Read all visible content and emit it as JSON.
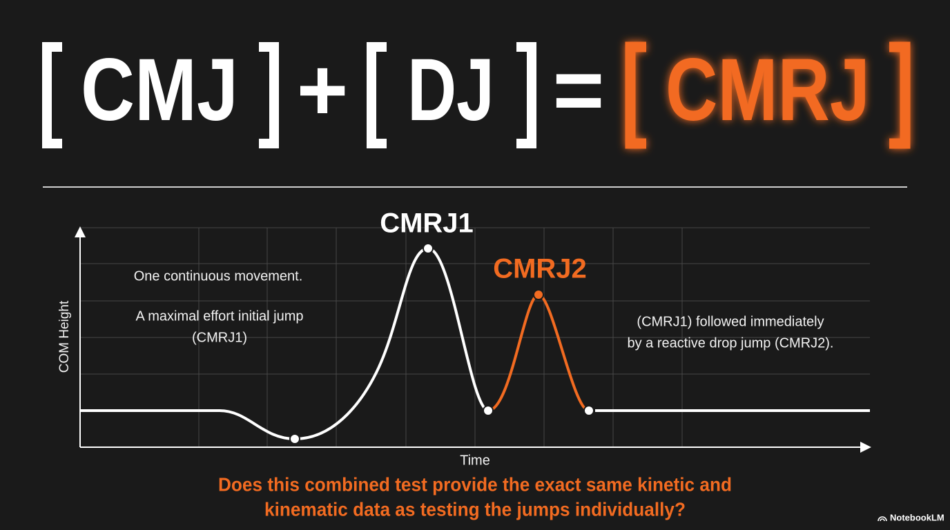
{
  "equation": {
    "terms": [
      "CMJ",
      "DJ",
      "CMRJ"
    ],
    "plus": "+",
    "equals": "="
  },
  "diagram": {
    "y_axis_label": "COM Height",
    "x_axis_label": "Time",
    "peaks": [
      "CMRJ1",
      "CMRJ2"
    ],
    "left_notes": [
      "One continuous movement.",
      "A maximal effort initial jump",
      "(CMRJ1)"
    ],
    "right_notes": [
      "(CMRJ1) followed immediately",
      "by a reactive drop jump (CMRJ2)."
    ]
  },
  "question": [
    "Does this combined test provide the exact same kinetic and",
    "kinematic data as testing the jumps individually?"
  ],
  "watermark": "NotebookLM"
}
